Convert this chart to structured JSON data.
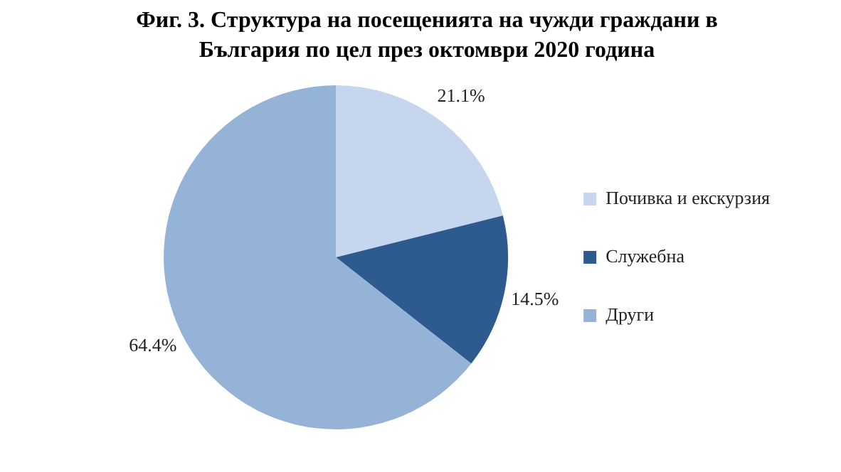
{
  "chart_data": {
    "type": "pie",
    "title": "Фиг. 3. Структура на посещенията на чужди граждани в България по цел през октомври 2020 година",
    "categories": [
      "Почивка и екскурзия",
      "Служебна",
      "Други"
    ],
    "values": [
      21.1,
      14.5,
      64.4
    ],
    "colors": [
      "#c6d6ee",
      "#2e5b8f",
      "#95b3d7"
    ],
    "value_labels": [
      "21.1%",
      "14.5%",
      "64.4%"
    ],
    "legend": "right"
  }
}
